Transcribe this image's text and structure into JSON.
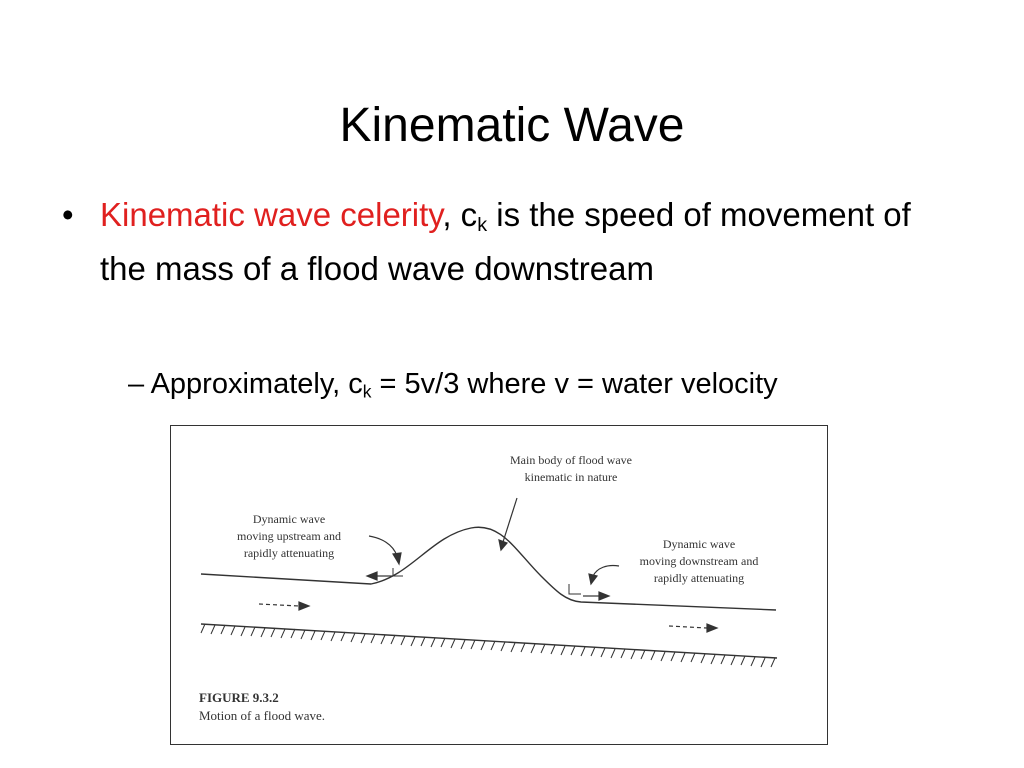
{
  "slide": {
    "title": "Kinematic Wave"
  },
  "bullet": {
    "marker": "•",
    "highlight": "Kinematic wave celerity",
    "after_highlight": ", c",
    "sub_k": "k",
    "rest": " is the speed of movement of the mass of a flood wave downstream"
  },
  "sub_bullet": {
    "prefix": "– Approximately, c",
    "sub_k": "k",
    "rest": " = 5v/3 where v = water velocity"
  },
  "figure": {
    "label_main_line1": "Main body of flood wave",
    "label_main_line2": "kinematic in nature",
    "label_left_line1": "Dynamic wave",
    "label_left_line2": "moving upstream and",
    "label_left_line3": "rapidly attenuating",
    "label_right_line1": "Dynamic wave",
    "label_right_line2": "moving downstream and",
    "label_right_line3": "rapidly attenuating",
    "caption_number": "FIGURE 9.3.2",
    "caption_text": "Motion of a flood wave."
  },
  "colors": {
    "highlight": "#e0201f",
    "text": "#000000",
    "figure_ink": "#333333"
  }
}
